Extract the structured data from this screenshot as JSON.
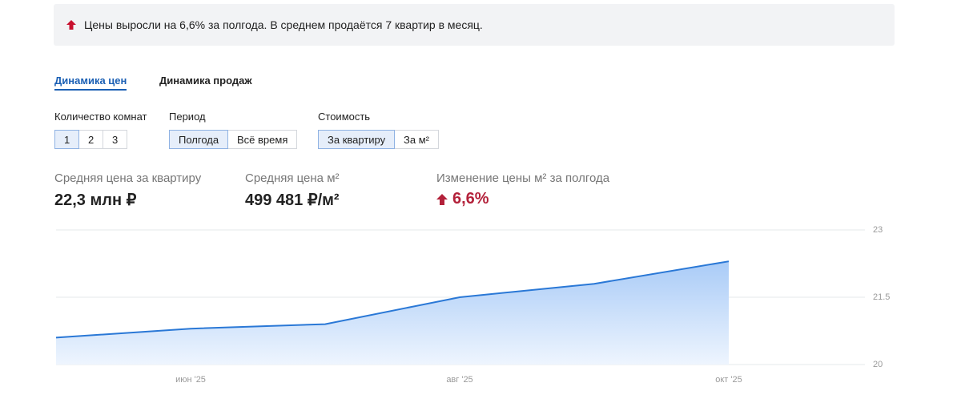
{
  "banner": {
    "text": "Цены выросли на 6,6% за полгода. В среднем продаётся 7 квартир в месяц."
  },
  "tabs": [
    {
      "label": "Динамика цен",
      "active": true
    },
    {
      "label": "Динамика продаж",
      "active": false
    }
  ],
  "filters": [
    {
      "label": "Количество комнат",
      "options": [
        {
          "label": "1",
          "selected": true
        },
        {
          "label": "2",
          "selected": false
        },
        {
          "label": "3",
          "selected": false
        }
      ]
    },
    {
      "label": "Период",
      "options": [
        {
          "label": "Полгода",
          "selected": true
        },
        {
          "label": "Всё время",
          "selected": false
        }
      ]
    },
    {
      "label": "Стоимость",
      "options": [
        {
          "label": "За квартиру",
          "selected": true
        },
        {
          "label": "За м²",
          "selected": false
        }
      ]
    }
  ],
  "stats": [
    {
      "label": "Средняя цена за квартиру",
      "value": "22,3 млн ₽"
    },
    {
      "label": "Средняя цена м²",
      "value": "499 481 ₽/м²"
    },
    {
      "label": "Изменение цены м² за полгода",
      "value": "6,6%",
      "trend": "up"
    }
  ],
  "chart_data": {
    "type": "area",
    "color": "#2a78d6",
    "categories": [
      null,
      "июн '25",
      null,
      "авг '25",
      null,
      "окт '25"
    ],
    "values": [
      20.6,
      20.8,
      20.9,
      21.5,
      21.8,
      22.3
    ],
    "ylim": [
      20,
      23
    ],
    "yticks": [
      20,
      21.5,
      23
    ],
    "grid": true
  }
}
